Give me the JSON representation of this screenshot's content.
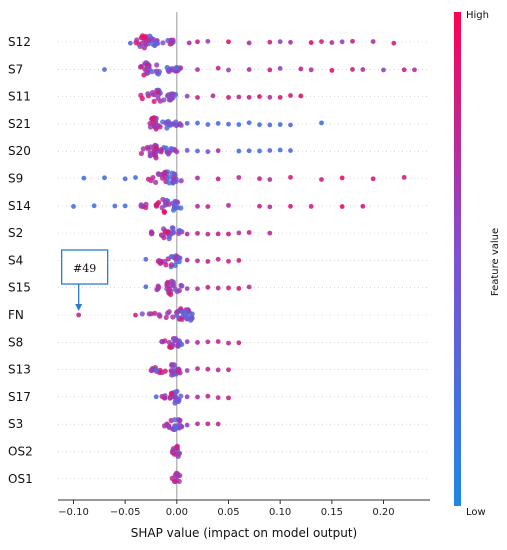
{
  "chart_data": {
    "type": "scatter",
    "subtype": "shap-beeswarm",
    "xlabel": "SHAP value (impact on model output)",
    "xlim": [
      -0.115,
      0.245
    ],
    "xticks": [
      -0.1,
      -0.05,
      0.0,
      0.05,
      0.1,
      0.15,
      0.2
    ],
    "xtick_labels": [
      "−0.10",
      "−0.05",
      "0.00",
      "0.05",
      "0.10",
      "0.15",
      "0.20"
    ],
    "colorbar": {
      "label": "Feature value",
      "high_label": "High",
      "low_label": "Low",
      "colors": [
        "#1e88e5",
        "#7b52d6",
        "#ff0052"
      ]
    },
    "annotation": {
      "text": "#49",
      "feature": "FN",
      "x": -0.095
    },
    "features": [
      {
        "name": "S12",
        "dense": [
          -0.04,
          0.0,
          -0.03
        ],
        "dense_count": 38,
        "tail": [
          [
            0.012,
            0.7
          ],
          [
            0.02,
            0.8
          ],
          [
            0.03,
            0.6
          ],
          [
            0.05,
            0.9
          ],
          [
            0.07,
            0.7
          ],
          [
            0.09,
            0.8
          ],
          [
            0.1,
            0.6
          ],
          [
            0.11,
            0.7
          ],
          [
            0.13,
            0.9
          ],
          [
            0.14,
            0.8
          ],
          [
            0.15,
            0.7
          ],
          [
            0.16,
            0.6
          ],
          [
            0.17,
            0.8
          ],
          [
            0.19,
            0.7
          ],
          [
            0.21,
            0.8
          ],
          [
            -0.045,
            0.3
          ]
        ]
      },
      {
        "name": "S7",
        "dense": [
          -0.04,
          0.005,
          -0.028
        ],
        "dense_count": 40,
        "tail": [
          [
            0.02,
            0.7
          ],
          [
            0.04,
            0.8
          ],
          [
            0.05,
            0.6
          ],
          [
            0.07,
            0.7
          ],
          [
            0.09,
            0.8
          ],
          [
            0.1,
            0.6
          ],
          [
            0.12,
            0.8
          ],
          [
            0.13,
            0.7
          ],
          [
            0.15,
            0.9
          ],
          [
            0.17,
            0.8
          ],
          [
            0.18,
            0.7
          ],
          [
            0.2,
            0.6
          ],
          [
            0.22,
            0.8
          ],
          [
            0.23,
            0.7
          ],
          [
            -0.07,
            0.3
          ]
        ]
      },
      {
        "name": "S11",
        "dense": [
          -0.035,
          0.0,
          -0.018
        ],
        "dense_count": 30,
        "tail": [
          [
            0.01,
            0.6
          ],
          [
            0.02,
            0.8
          ],
          [
            0.035,
            0.7
          ],
          [
            0.05,
            0.85
          ],
          [
            0.06,
            0.75
          ],
          [
            0.07,
            0.8
          ],
          [
            0.08,
            0.9
          ],
          [
            0.09,
            0.7
          ],
          [
            0.1,
            0.85
          ],
          [
            0.11,
            0.8
          ],
          [
            0.12,
            0.9
          ]
        ]
      },
      {
        "name": "S21",
        "dense": [
          -0.035,
          0.005,
          -0.02
        ],
        "dense_count": 38,
        "tail": [
          [
            0.01,
            0.3
          ],
          [
            0.02,
            0.2
          ],
          [
            0.03,
            0.3
          ],
          [
            0.04,
            0.2
          ],
          [
            0.05,
            0.3
          ],
          [
            0.06,
            0.2
          ],
          [
            0.07,
            0.25
          ],
          [
            0.08,
            0.2
          ],
          [
            0.09,
            0.3
          ],
          [
            0.1,
            0.2
          ],
          [
            0.11,
            0.3
          ],
          [
            0.14,
            0.2
          ]
        ]
      },
      {
        "name": "S20",
        "dense": [
          -0.035,
          0.0,
          -0.02
        ],
        "dense_count": 38,
        "tail": [
          [
            0.01,
            0.4
          ],
          [
            0.02,
            0.3
          ],
          [
            0.03,
            0.5
          ],
          [
            0.04,
            0.7
          ],
          [
            0.06,
            0.2
          ],
          [
            0.07,
            0.25
          ],
          [
            0.08,
            0.2
          ],
          [
            0.09,
            0.3
          ],
          [
            0.1,
            0.2
          ],
          [
            0.11,
            0.25
          ]
        ]
      },
      {
        "name": "S9",
        "dense": [
          -0.03,
          0.005,
          -0.01
        ],
        "dense_count": 30,
        "tail": [
          [
            -0.09,
            0.2
          ],
          [
            -0.07,
            0.2
          ],
          [
            -0.05,
            0.25
          ],
          [
            -0.04,
            0.2
          ],
          [
            0.02,
            0.7
          ],
          [
            0.04,
            0.8
          ],
          [
            0.06,
            0.75
          ],
          [
            0.08,
            0.8
          ],
          [
            0.09,
            0.7
          ],
          [
            0.11,
            0.85
          ],
          [
            0.14,
            0.8
          ],
          [
            0.16,
            0.9
          ],
          [
            0.19,
            0.85
          ],
          [
            0.22,
            0.8
          ]
        ]
      },
      {
        "name": "S14",
        "dense": [
          -0.035,
          0.005,
          -0.012
        ],
        "dense_count": 32,
        "tail": [
          [
            -0.1,
            0.2
          ],
          [
            -0.08,
            0.2
          ],
          [
            -0.06,
            0.25
          ],
          [
            -0.05,
            0.2
          ],
          [
            0.02,
            0.7
          ],
          [
            0.03,
            0.8
          ],
          [
            0.05,
            0.75
          ],
          [
            0.08,
            0.8
          ],
          [
            0.09,
            0.7
          ],
          [
            0.11,
            0.85
          ],
          [
            0.13,
            0.8
          ],
          [
            0.16,
            0.9
          ],
          [
            0.18,
            0.85
          ]
        ]
      },
      {
        "name": "S2",
        "dense": [
          -0.025,
          0.005,
          -0.008
        ],
        "dense_count": 26,
        "tail": [
          [
            0.01,
            0.7
          ],
          [
            0.02,
            0.8
          ],
          [
            0.03,
            0.75
          ],
          [
            0.04,
            0.8
          ],
          [
            0.05,
            0.85
          ],
          [
            0.06,
            0.7
          ],
          [
            0.07,
            0.8
          ],
          [
            0.09,
            0.75
          ]
        ]
      },
      {
        "name": "S4",
        "dense": [
          -0.02,
          0.005,
          -0.006
        ],
        "dense_count": 24,
        "tail": [
          [
            0.01,
            0.7
          ],
          [
            0.02,
            0.75
          ],
          [
            0.03,
            0.8
          ],
          [
            0.04,
            0.75
          ],
          [
            0.05,
            0.8
          ],
          [
            0.06,
            0.85
          ],
          [
            -0.03,
            0.3
          ]
        ]
      },
      {
        "name": "S15",
        "dense": [
          -0.02,
          0.005,
          -0.006
        ],
        "dense_count": 24,
        "tail": [
          [
            0.01,
            0.6
          ],
          [
            0.02,
            0.7
          ],
          [
            0.03,
            0.8
          ],
          [
            0.04,
            0.75
          ],
          [
            0.05,
            0.8
          ],
          [
            0.06,
            0.85
          ],
          [
            0.07,
            0.7
          ],
          [
            -0.03,
            0.3
          ]
        ]
      },
      {
        "name": "FN",
        "dense": [
          -0.035,
          0.015,
          0.005
        ],
        "dense_count": 34,
        "tail": [
          [
            -0.095,
            0.75
          ],
          [
            -0.04,
            0.8
          ],
          [
            0.0,
            0.3
          ],
          [
            0.01,
            0.25
          ],
          [
            0.015,
            0.2
          ]
        ]
      },
      {
        "name": "S8",
        "dense": [
          -0.015,
          0.005,
          -0.003
        ],
        "dense_count": 22,
        "tail": [
          [
            0.01,
            0.6
          ],
          [
            0.02,
            0.75
          ],
          [
            0.03,
            0.7
          ],
          [
            0.04,
            0.8
          ],
          [
            0.05,
            0.75
          ],
          [
            0.06,
            0.8
          ]
        ]
      },
      {
        "name": "S13",
        "dense": [
          -0.025,
          0.005,
          -0.005
        ],
        "dense_count": 28,
        "tail": [
          [
            0.01,
            0.6
          ],
          [
            0.02,
            0.75
          ],
          [
            0.03,
            0.8
          ],
          [
            0.04,
            0.7
          ],
          [
            0.05,
            0.8
          ],
          [
            -0.02,
            0.2
          ]
        ]
      },
      {
        "name": "S17",
        "dense": [
          -0.015,
          0.005,
          -0.002
        ],
        "dense_count": 22,
        "tail": [
          [
            0.01,
            0.6
          ],
          [
            0.02,
            0.7
          ],
          [
            0.03,
            0.8
          ],
          [
            0.04,
            0.75
          ],
          [
            0.05,
            0.8
          ],
          [
            -0.02,
            0.2
          ]
        ]
      },
      {
        "name": "S3",
        "dense": [
          -0.012,
          0.005,
          -0.002
        ],
        "dense_count": 20,
        "tail": [
          [
            0.01,
            0.6
          ],
          [
            0.02,
            0.7
          ],
          [
            0.03,
            0.8
          ],
          [
            0.04,
            0.75
          ]
        ]
      },
      {
        "name": "OS2",
        "dense": [
          -0.005,
          0.004,
          0.0
        ],
        "dense_count": 14,
        "tail": []
      },
      {
        "name": "OS1",
        "dense": [
          -0.005,
          0.003,
          0.0
        ],
        "dense_count": 12,
        "tail": []
      }
    ]
  }
}
